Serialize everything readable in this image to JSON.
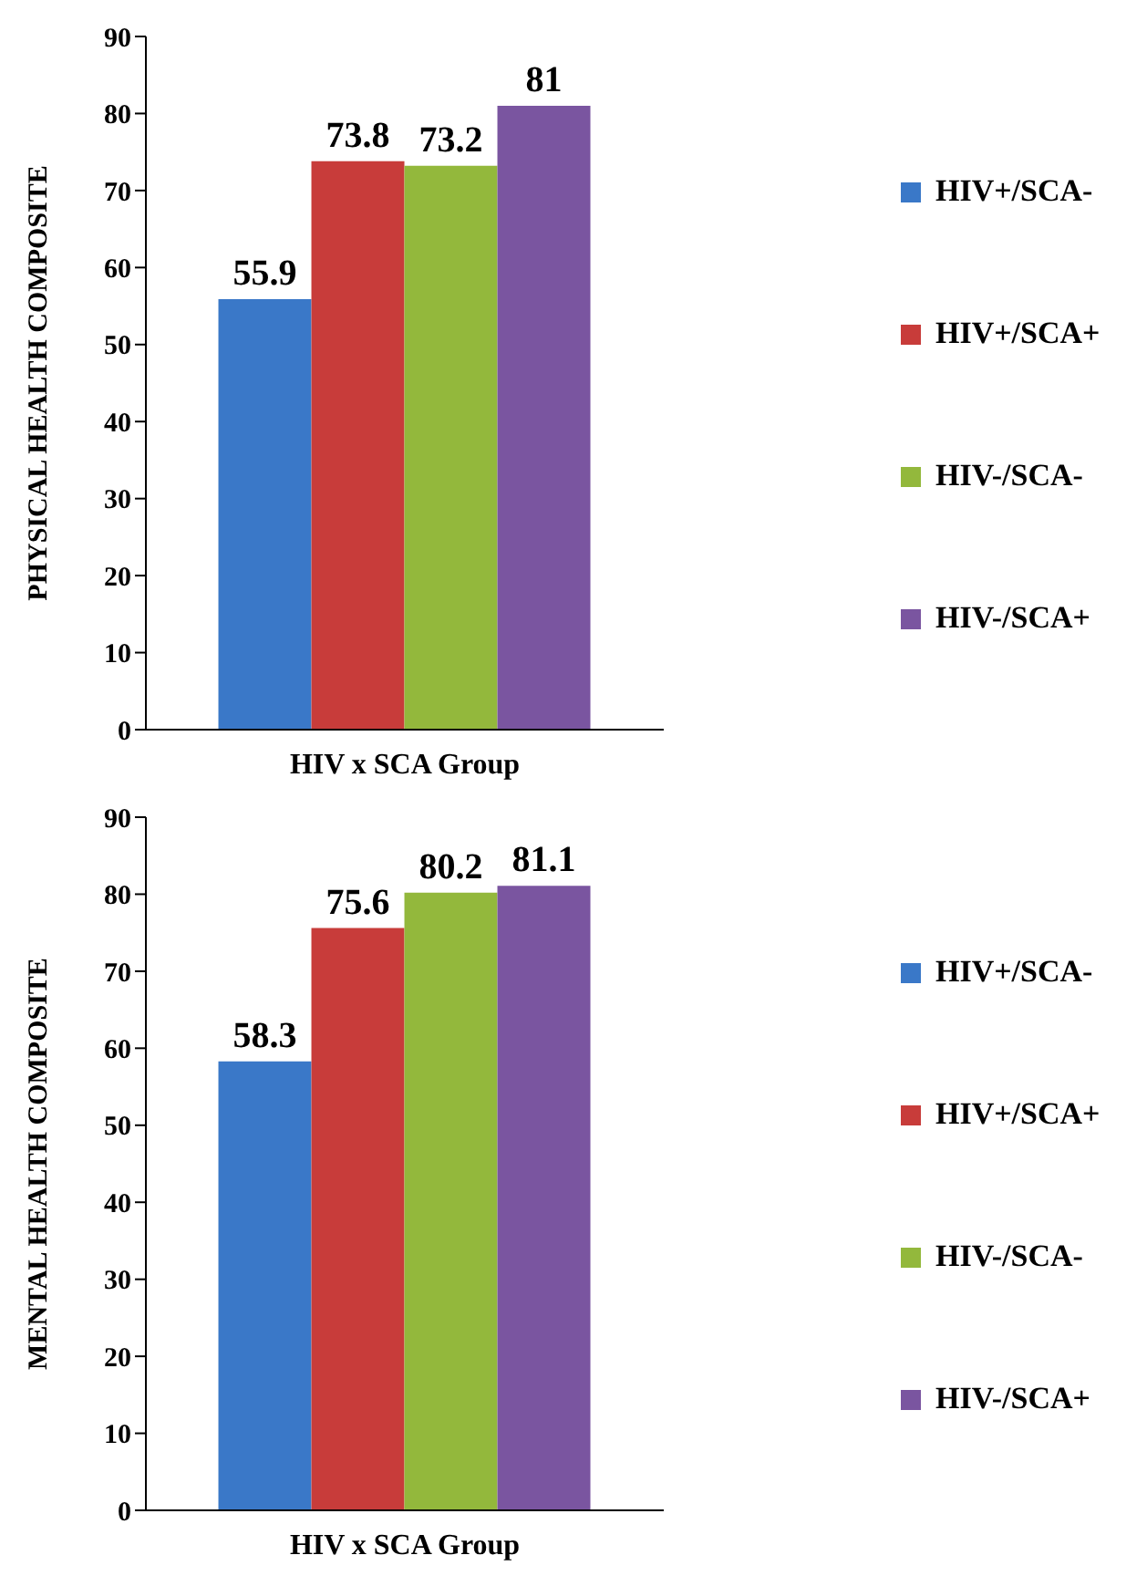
{
  "chart_data": [
    {
      "type": "bar",
      "categories": [
        null
      ],
      "xlabel": "HIV x SCA Group",
      "ylabel": "PHYSICAL HEALTH COMPOSITE",
      "ylim": [
        0,
        90
      ],
      "yticks": [
        0,
        10,
        20,
        30,
        40,
        50,
        60,
        70,
        80,
        90
      ],
      "grid": false,
      "legend": "right",
      "data_labels": true,
      "series": [
        {
          "name": "HIV+/SCA-",
          "color": "#3a78c8",
          "values": [
            55.9
          ]
        },
        {
          "name": "HIV+/SCA+",
          "color": "#c83c3a",
          "values": [
            73.8
          ]
        },
        {
          "name": "HIV-/SCA-",
          "color": "#93b83c",
          "values": [
            73.2
          ]
        },
        {
          "name": "HIV-/SCA+",
          "color": "#7a55a0",
          "values": [
            81
          ]
        }
      ]
    },
    {
      "type": "bar",
      "categories": [
        null
      ],
      "xlabel": "HIV x SCA Group",
      "ylabel": "MENTAL HEALTH COMPOSITE",
      "ylim": [
        0,
        90
      ],
      "yticks": [
        0,
        10,
        20,
        30,
        40,
        50,
        60,
        70,
        80,
        90
      ],
      "grid": false,
      "legend": "right",
      "data_labels": true,
      "series": [
        {
          "name": "HIV+/SCA-",
          "color": "#3a78c8",
          "values": [
            58.3
          ]
        },
        {
          "name": "HIV+/SCA+",
          "color": "#c83c3a",
          "values": [
            75.6
          ]
        },
        {
          "name": "HIV-/SCA-",
          "color": "#93b83c",
          "values": [
            80.2
          ]
        },
        {
          "name": "HIV-/SCA+",
          "color": "#7a55a0",
          "values": [
            81.1
          ]
        }
      ]
    }
  ]
}
